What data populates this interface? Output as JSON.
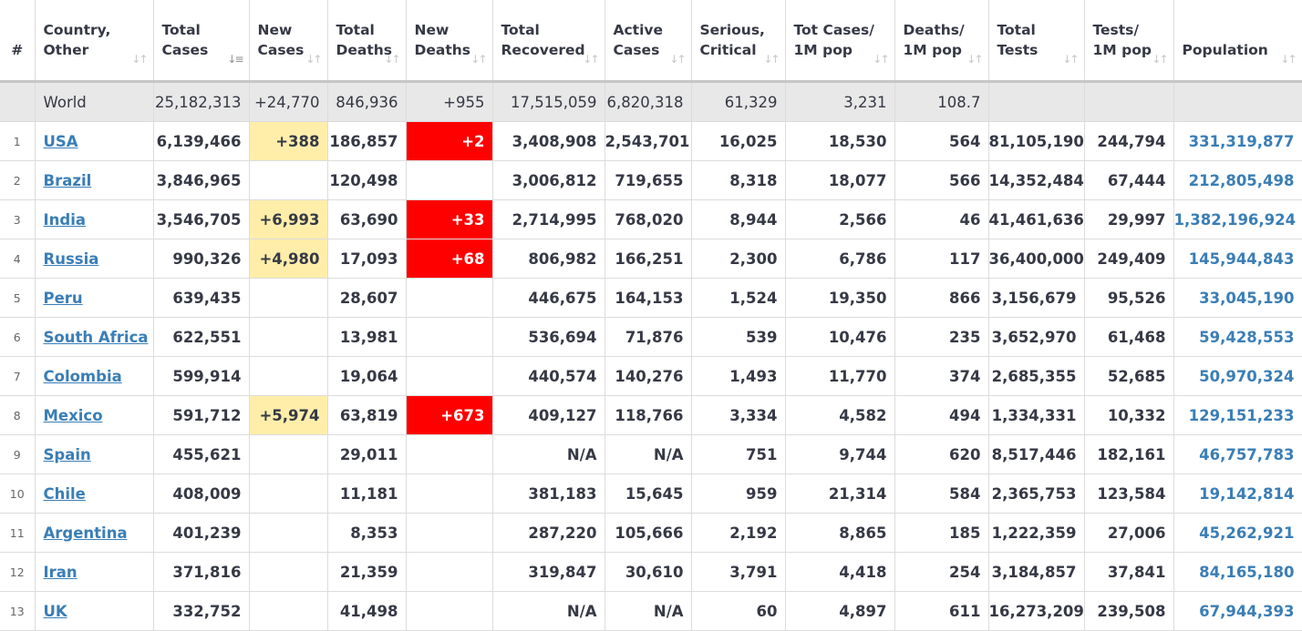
{
  "headers": [
    {
      "line1": "#",
      "line2": ""
    },
    {
      "line1": "Country,",
      "line2": "Other"
    },
    {
      "line1": "Total",
      "line2": "Cases"
    },
    {
      "line1": "New",
      "line2": "Cases"
    },
    {
      "line1": "Total",
      "line2": "Deaths"
    },
    {
      "line1": "New",
      "line2": "Deaths"
    },
    {
      "line1": "Total",
      "line2": "Recovered"
    },
    {
      "line1": "Active",
      "line2": "Cases"
    },
    {
      "line1": "Serious,",
      "line2": "Critical"
    },
    {
      "line1": "Tot Cases/",
      "line2": "1M pop"
    },
    {
      "line1": "Deaths/",
      "line2": "1M pop"
    },
    {
      "line1": "Total",
      "line2": "Tests"
    },
    {
      "line1": "Tests/",
      "line2": "1M pop"
    },
    {
      "line1": "",
      "line2": "Population"
    }
  ],
  "sort_icon": "sort-arrows-icon",
  "active_sort_icon": "sort-descending-icon",
  "colors": {
    "new_cases_highlight": "#ffeeaa",
    "new_deaths_highlight": "#ff0000",
    "link": "#3a7eb6",
    "world_row_bg": "#e8e8e8"
  },
  "world": {
    "country": "World",
    "total_cases": "25,182,313",
    "new_cases": "+24,770",
    "total_deaths": "846,936",
    "new_deaths": "+955",
    "total_recovered": "17,515,059",
    "active_cases": "6,820,318",
    "serious": "61,329",
    "cases_per_1m": "3,231",
    "deaths_per_1m": "108.7",
    "total_tests": "",
    "tests_per_1m": "",
    "population": ""
  },
  "rows": [
    {
      "idx": "1",
      "country": "USA",
      "total_cases": "6,139,466",
      "new_cases": "+388",
      "total_deaths": "186,857",
      "new_deaths": "+2",
      "total_recovered": "3,408,908",
      "active_cases": "2,543,701",
      "serious": "16,025",
      "cases_per_1m": "18,530",
      "deaths_per_1m": "564",
      "total_tests": "81,105,190",
      "tests_per_1m": "244,794",
      "population": "331,319,877"
    },
    {
      "idx": "2",
      "country": "Brazil",
      "total_cases": "3,846,965",
      "new_cases": "",
      "total_deaths": "120,498",
      "new_deaths": "",
      "total_recovered": "3,006,812",
      "active_cases": "719,655",
      "serious": "8,318",
      "cases_per_1m": "18,077",
      "deaths_per_1m": "566",
      "total_tests": "14,352,484",
      "tests_per_1m": "67,444",
      "population": "212,805,498"
    },
    {
      "idx": "3",
      "country": "India",
      "total_cases": "3,546,705",
      "new_cases": "+6,993",
      "total_deaths": "63,690",
      "new_deaths": "+33",
      "total_recovered": "2,714,995",
      "active_cases": "768,020",
      "serious": "8,944",
      "cases_per_1m": "2,566",
      "deaths_per_1m": "46",
      "total_tests": "41,461,636",
      "tests_per_1m": "29,997",
      "population": "1,382,196,924"
    },
    {
      "idx": "4",
      "country": "Russia",
      "total_cases": "990,326",
      "new_cases": "+4,980",
      "total_deaths": "17,093",
      "new_deaths": "+68",
      "total_recovered": "806,982",
      "active_cases": "166,251",
      "serious": "2,300",
      "cases_per_1m": "6,786",
      "deaths_per_1m": "117",
      "total_tests": "36,400,000",
      "tests_per_1m": "249,409",
      "population": "145,944,843"
    },
    {
      "idx": "5",
      "country": "Peru",
      "total_cases": "639,435",
      "new_cases": "",
      "total_deaths": "28,607",
      "new_deaths": "",
      "total_recovered": "446,675",
      "active_cases": "164,153",
      "serious": "1,524",
      "cases_per_1m": "19,350",
      "deaths_per_1m": "866",
      "total_tests": "3,156,679",
      "tests_per_1m": "95,526",
      "population": "33,045,190"
    },
    {
      "idx": "6",
      "country": "South Africa",
      "total_cases": "622,551",
      "new_cases": "",
      "total_deaths": "13,981",
      "new_deaths": "",
      "total_recovered": "536,694",
      "active_cases": "71,876",
      "serious": "539",
      "cases_per_1m": "10,476",
      "deaths_per_1m": "235",
      "total_tests": "3,652,970",
      "tests_per_1m": "61,468",
      "population": "59,428,553"
    },
    {
      "idx": "7",
      "country": "Colombia",
      "total_cases": "599,914",
      "new_cases": "",
      "total_deaths": "19,064",
      "new_deaths": "",
      "total_recovered": "440,574",
      "active_cases": "140,276",
      "serious": "1,493",
      "cases_per_1m": "11,770",
      "deaths_per_1m": "374",
      "total_tests": "2,685,355",
      "tests_per_1m": "52,685",
      "population": "50,970,324"
    },
    {
      "idx": "8",
      "country": "Mexico",
      "total_cases": "591,712",
      "new_cases": "+5,974",
      "total_deaths": "63,819",
      "new_deaths": "+673",
      "total_recovered": "409,127",
      "active_cases": "118,766",
      "serious": "3,334",
      "cases_per_1m": "4,582",
      "deaths_per_1m": "494",
      "total_tests": "1,334,331",
      "tests_per_1m": "10,332",
      "population": "129,151,233"
    },
    {
      "idx": "9",
      "country": "Spain",
      "total_cases": "455,621",
      "new_cases": "",
      "total_deaths": "29,011",
      "new_deaths": "",
      "total_recovered": "N/A",
      "active_cases": "N/A",
      "serious": "751",
      "cases_per_1m": "9,744",
      "deaths_per_1m": "620",
      "total_tests": "8,517,446",
      "tests_per_1m": "182,161",
      "population": "46,757,783"
    },
    {
      "idx": "10",
      "country": "Chile",
      "total_cases": "408,009",
      "new_cases": "",
      "total_deaths": "11,181",
      "new_deaths": "",
      "total_recovered": "381,183",
      "active_cases": "15,645",
      "serious": "959",
      "cases_per_1m": "21,314",
      "deaths_per_1m": "584",
      "total_tests": "2,365,753",
      "tests_per_1m": "123,584",
      "population": "19,142,814"
    },
    {
      "idx": "11",
      "country": "Argentina",
      "total_cases": "401,239",
      "new_cases": "",
      "total_deaths": "8,353",
      "new_deaths": "",
      "total_recovered": "287,220",
      "active_cases": "105,666",
      "serious": "2,192",
      "cases_per_1m": "8,865",
      "deaths_per_1m": "185",
      "total_tests": "1,222,359",
      "tests_per_1m": "27,006",
      "population": "45,262,921"
    },
    {
      "idx": "12",
      "country": "Iran",
      "total_cases": "371,816",
      "new_cases": "",
      "total_deaths": "21,359",
      "new_deaths": "",
      "total_recovered": "319,847",
      "active_cases": "30,610",
      "serious": "3,791",
      "cases_per_1m": "4,418",
      "deaths_per_1m": "254",
      "total_tests": "3,184,857",
      "tests_per_1m": "37,841",
      "population": "84,165,180"
    },
    {
      "idx": "13",
      "country": "UK",
      "total_cases": "332,752",
      "new_cases": "",
      "total_deaths": "41,498",
      "new_deaths": "",
      "total_recovered": "N/A",
      "active_cases": "N/A",
      "serious": "60",
      "cases_per_1m": "4,897",
      "deaths_per_1m": "611",
      "total_tests": "16,273,209",
      "tests_per_1m": "239,508",
      "population": "67,944,393"
    }
  ]
}
